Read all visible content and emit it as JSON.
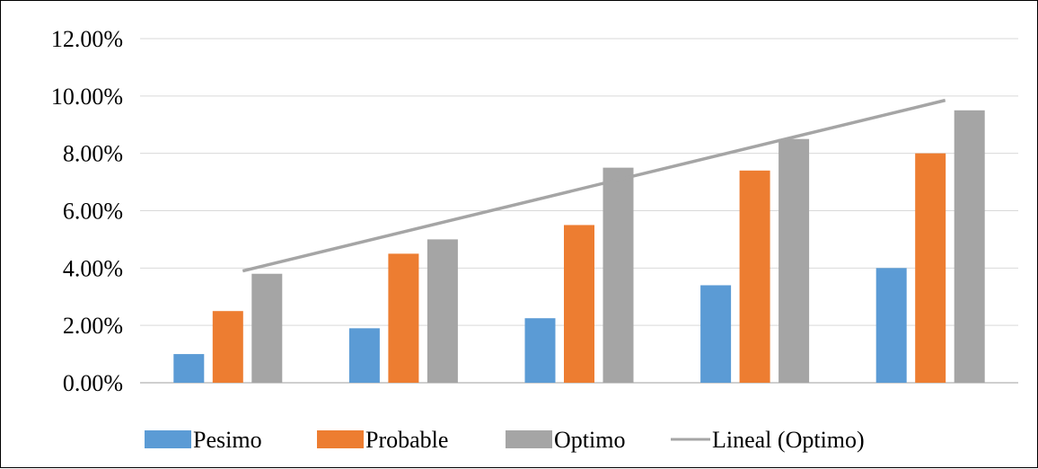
{
  "chart_data": {
    "type": "bar",
    "title": "",
    "xlabel": "",
    "ylabel": "",
    "categories": [
      "",
      "",
      "",
      "",
      ""
    ],
    "ylim": [
      0,
      0.12
    ],
    "y_ticks": [
      0,
      0.02,
      0.04,
      0.06,
      0.08,
      0.1,
      0.12
    ],
    "y_tick_labels": [
      "0.00%",
      "2.00%",
      "4.00%",
      "6.00%",
      "8.00%",
      "10.00%",
      "12.00%"
    ],
    "grid": true,
    "legend_position": "bottom",
    "series": [
      {
        "name": "Pesimo",
        "color": "#5b9bd5",
        "values": [
          0.01,
          0.019,
          0.0225,
          0.034,
          0.04
        ]
      },
      {
        "name": "Probable",
        "color": "#ed7d31",
        "values": [
          0.025,
          0.045,
          0.055,
          0.074,
          0.08
        ]
      },
      {
        "name": "Optimo",
        "color": "#a5a5a5",
        "values": [
          0.038,
          0.05,
          0.075,
          0.085,
          0.095
        ]
      }
    ],
    "trendline": {
      "name": "Lineal (Optimo)",
      "series": "Optimo",
      "type": "linear",
      "color": "#a5a5a5",
      "start_value": 0.039,
      "end_value": 0.0985
    }
  }
}
